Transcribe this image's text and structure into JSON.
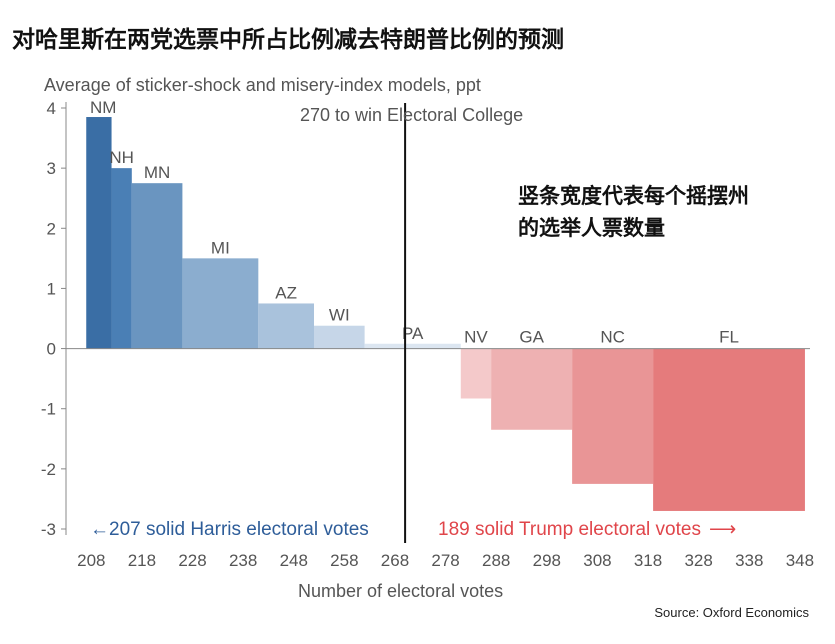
{
  "header": {
    "title": "对哈里斯在两党选票中所占比例减去特朗普比例的预测"
  },
  "footer": {
    "source": "Source: Oxford Economics"
  },
  "chart_data": {
    "type": "bar",
    "title": "对哈里斯在两党选票中所占比例减去特朗普比例的预测",
    "ylabel": "Average of sticker-shock and misery-index models, ppt",
    "xlabel": "Number of electoral votes",
    "xlim": [
      203,
      350
    ],
    "ylim": [
      -3,
      4
    ],
    "xticks": [
      208,
      218,
      228,
      238,
      248,
      258,
      268,
      278,
      288,
      298,
      308,
      318,
      328,
      338,
      348
    ],
    "yticks": [
      4,
      3,
      2,
      1,
      0,
      -1,
      -2,
      -3
    ],
    "threshold": {
      "x": 270,
      "label": "270 to win Electoral College"
    },
    "annotation": "竖条宽度代表每个摇摆州的选举人票数量",
    "harris_base": {
      "label": "207 solid Harris electoral votes",
      "arrow": "←"
    },
    "trump_base": {
      "label": "189 solid Trump electoral votes",
      "arrow": "⟶"
    },
    "states": [
      {
        "name": "NM",
        "start": 207,
        "end": 212,
        "value": 3.85,
        "color": "#3a6ea5"
      },
      {
        "name": "NH",
        "start": 212,
        "end": 216,
        "value": 3.0,
        "color": "#4a7fb5"
      },
      {
        "name": "MN",
        "start": 216,
        "end": 226,
        "value": 2.75,
        "color": "#6a95c0"
      },
      {
        "name": "MI",
        "start": 226,
        "end": 241,
        "value": 1.5,
        "color": "#8badcf"
      },
      {
        "name": "AZ",
        "start": 241,
        "end": 252,
        "value": 0.75,
        "color": "#a9c2dc"
      },
      {
        "name": "WI",
        "start": 252,
        "end": 262,
        "value": 0.38,
        "color": "#c6d6e8"
      },
      {
        "name": "PA",
        "start": 262,
        "end": 281,
        "value": 0.08,
        "color": "#dce6f1"
      },
      {
        "name": "NV",
        "start": 281,
        "end": 287,
        "value": -0.83,
        "color": "#f4c9ca"
      },
      {
        "name": "GA",
        "start": 287,
        "end": 303,
        "value": -1.35,
        "color": "#eeb1b2"
      },
      {
        "name": "NC",
        "start": 303,
        "end": 319,
        "value": -2.25,
        "color": "#e99596"
      },
      {
        "name": "FL",
        "start": 319,
        "end": 349,
        "value": -2.7,
        "color": "#e57b7c"
      }
    ],
    "colors": {
      "harris": "#2e5d99",
      "trump": "#e0454a",
      "axis": "#888888",
      "threshold": "#111111"
    }
  }
}
